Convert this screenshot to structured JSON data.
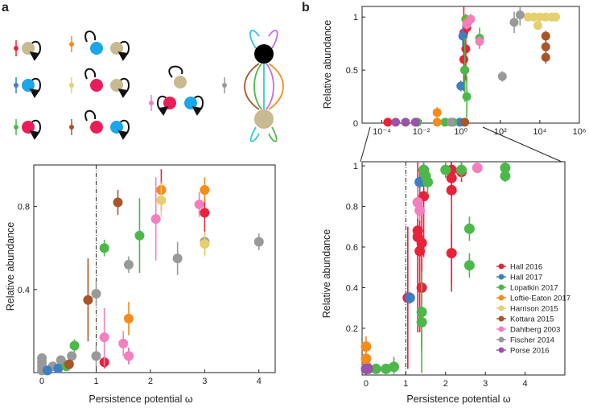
{
  "figure": {
    "panel_a_label": "a",
    "panel_b_label": "b",
    "omega_symbol": "ω"
  },
  "colors": {
    "Hall 2016": "#e8223a",
    "Hall 2017": "#3f7fc1",
    "Lopatkin 2017": "#4cb84a",
    "Loftie-Eaton 2017": "#f28c1c",
    "Harrison 2015": "#e6cf6e",
    "Kottara 2015": "#a65628",
    "Dahlberg 2003": "#f27fbf",
    "Fischer 2014": "#999999",
    "Porse 2016": "#9a53a8",
    "host_tan": "#c8b991",
    "host_blue": "#1aa6e8",
    "host_red": "#e81e5a",
    "cyan": "#34c6d8",
    "violet": "#c46ee0"
  },
  "chart_data": [
    {
      "id": "a-bottom",
      "type": "scatter",
      "xlabel": "Persistence potential ω",
      "ylabel": "Relative abundance",
      "xlim": [
        -0.15,
        4.3
      ],
      "ylim": [
        0,
        1.0
      ],
      "xticks": [
        "0",
        "1",
        "2",
        "3",
        "4"
      ],
      "yticks": [
        "0.4",
        "0.8"
      ],
      "reference_line_x": 1,
      "series": [
        {
          "name": "Fischer 2014",
          "points": [
            [
              0,
              0.07,
              0.02
            ],
            [
              0,
              0.05,
              0.02
            ],
            [
              0,
              0.03,
              0.02
            ],
            [
              0,
              0.01,
              0.01
            ],
            [
              0.2,
              0.03,
              0.02
            ],
            [
              0.35,
              0.06,
              0.02
            ],
            [
              0.55,
              0.08,
              0.02
            ],
            [
              1.0,
              0.38,
              0.06
            ],
            [
              1.0,
              0.08,
              0.05
            ],
            [
              1.6,
              0.52,
              0.04
            ],
            [
              2.5,
              0.55,
              0.08
            ],
            [
              3.0,
              0.63,
              0.06
            ],
            [
              4.0,
              0.63,
              0.04
            ]
          ]
        },
        {
          "name": "Hall 2016",
          "points": [
            [
              1.15,
              0.05,
              0.03
            ],
            [
              1.6,
              0.08,
              0.04
            ],
            [
              2.2,
              0.88,
              0.1
            ],
            [
              3.0,
              0.77,
              0.1
            ]
          ]
        },
        {
          "name": "Hall 2017",
          "points": [
            [
              0.1,
              0.01,
              0.01
            ],
            [
              0.3,
              0.02,
              0.01
            ]
          ]
        },
        {
          "name": "Lopatkin 2017",
          "points": [
            [
              0.6,
              0.13,
              0.03
            ],
            [
              1.15,
              0.6,
              0.04
            ],
            [
              1.8,
              0.66,
              0.18
            ],
            [
              0.45,
              0.03,
              0.02
            ]
          ]
        },
        {
          "name": "Loftie-Eaton 2017",
          "points": [
            [
              1.6,
              0.26,
              0.08
            ],
            [
              2.2,
              0.88,
              0.04
            ],
            [
              3.0,
              0.88,
              0.06
            ]
          ]
        },
        {
          "name": "Harrison 2015",
          "points": [
            [
              2.2,
              0.83,
              0.08
            ],
            [
              3.0,
              0.62,
              0.06
            ]
          ]
        },
        {
          "name": "Kottara 2015",
          "points": [
            [
              0.85,
              0.35,
              0.2
            ],
            [
              1.4,
              0.82,
              0.06
            ],
            [
              0.5,
              0.04,
              0.02
            ]
          ]
        },
        {
          "name": "Dahlberg 2003",
          "points": [
            [
              1.15,
              0.17,
              0.14
            ],
            [
              1.5,
              0.14,
              0.06
            ],
            [
              2.1,
              0.74,
              0.2
            ],
            [
              2.9,
              0.81,
              0.06
            ],
            [
              1.6,
              0.08,
              0.04
            ]
          ]
        }
      ]
    },
    {
      "id": "b-top",
      "type": "scatter",
      "xscale": "log",
      "ylabel": "Relative abundance",
      "xlim_log10": [
        -5,
        6
      ],
      "ylim": [
        0,
        1.1
      ],
      "xticks": [
        "10⁻⁴",
        "10⁻²",
        "10⁰",
        "10²",
        "10⁴",
        "10⁶"
      ],
      "yticks": [
        "0",
        "0.5",
        "1"
      ],
      "series": [
        {
          "name": "Hall 2016",
          "points": [
            [
              -3.7,
              0,
              0
            ],
            [
              0.15,
              0.85,
              0.25
            ],
            [
              0.15,
              0.6,
              0.3
            ],
            [
              0.2,
              0.5,
              0.2
            ],
            [
              0.25,
              0.7,
              0.3
            ],
            [
              0.3,
              0.9,
              0.1
            ]
          ]
        },
        {
          "name": "Hall 2017",
          "points": [
            [
              0.0,
              0.35,
              0.05
            ],
            [
              0.1,
              0.82,
              0.1
            ],
            [
              -0.05,
              0.0,
              0.0
            ]
          ]
        },
        {
          "name": "Lopatkin 2017",
          "points": [
            [
              -2.2,
              0,
              0
            ],
            [
              -0.8,
              0,
              0
            ],
            [
              -0.4,
              0,
              0
            ],
            [
              0.25,
              0.98,
              0.05
            ],
            [
              0.2,
              0.5,
              0.3
            ],
            [
              0.3,
              0.25,
              0.2
            ],
            [
              0.95,
              0.8,
              0.1
            ],
            [
              0.35,
              0.95,
              0.05
            ]
          ]
        },
        {
          "name": "Loftie-Eaton 2017",
          "points": [
            [
              -1.2,
              0.1,
              0.05
            ],
            [
              -1.2,
              0.0,
              0.0
            ],
            [
              0.3,
              0.95,
              0.05
            ]
          ]
        },
        {
          "name": "Harrison 2015",
          "points": [
            [
              3.4,
              1,
              0
            ],
            [
              3.7,
              1,
              0
            ],
            [
              4.0,
              1,
              0
            ],
            [
              4.3,
              1,
              0
            ],
            [
              4.6,
              1,
              0
            ],
            [
              4.8,
              1,
              0
            ],
            [
              3.9,
              0.92,
              0.03
            ]
          ]
        },
        {
          "name": "Kottara 2015",
          "points": [
            [
              4.3,
              0.82,
              0.05
            ],
            [
              4.3,
              0.72,
              0.06
            ],
            [
              4.3,
              0.62,
              0.06
            ],
            [
              0.2,
              0.0,
              0.0
            ]
          ]
        },
        {
          "name": "Dahlberg 2003",
          "points": [
            [
              0.5,
              0.98,
              0.05
            ],
            [
              0.3,
              0.93,
              0.05
            ],
            [
              0.95,
              0.77,
              0.05
            ]
          ]
        },
        {
          "name": "Fischer 2014",
          "points": [
            [
              -0.5,
              0,
              0
            ],
            [
              2.1,
              0.44,
              0.05
            ],
            [
              2.7,
              0.95,
              0.1
            ],
            [
              3.0,
              1.02,
              0.1
            ]
          ]
        },
        {
          "name": "Porse 2016",
          "points": [
            [
              -3.3,
              0,
              0
            ],
            [
              -2.8,
              0,
              0
            ],
            [
              -2.3,
              0,
              0
            ]
          ]
        }
      ]
    },
    {
      "id": "b-bottom",
      "type": "scatter",
      "xlabel": "Persistence potential ω",
      "ylabel": "Relative abundance",
      "xlim": [
        -0.1,
        5.0
      ],
      "ylim": [
        -0.03,
        1.02
      ],
      "xticks": [
        "0",
        "1",
        "2",
        "3",
        "4"
      ],
      "yticks": [
        "0.2",
        "0.4",
        "0.6",
        "0.8",
        "1"
      ],
      "reference_line_x": 1,
      "legend": [
        "Hall 2016",
        "Hall 2017",
        "Lopatkin 2017",
        "Loftie-Eaton 2017",
        "Harrison 2015",
        "Kottara 2015",
        "Dahlberg 2003",
        "Fischer 2014",
        "Porse 2016"
      ],
      "series": [
        {
          "name": "Hall 2016",
          "points": [
            [
              1.05,
              0.35,
              0.35
            ],
            [
              1.3,
              0.65,
              0.25
            ],
            [
              1.35,
              0.58,
              0.4
            ],
            [
              1.4,
              0.62,
              0.2
            ],
            [
              1.3,
              0.68,
              0.5
            ],
            [
              1.4,
              0.4,
              0.3
            ],
            [
              1.45,
              0.85,
              0.3
            ],
            [
              2.15,
              0.98,
              0.05
            ],
            [
              2.15,
              0.88,
              0.5
            ],
            [
              2.15,
              0.57,
              0.15
            ],
            [
              2.4,
              0.97,
              0.05
            ],
            [
              2.15,
              0.94,
              0.1
            ]
          ]
        },
        {
          "name": "Hall 2017",
          "points": [
            [
              1.1,
              0.35,
              0.03
            ],
            [
              1.35,
              0.92,
              0.05
            ],
            [
              1.45,
              0.98,
              0.05
            ]
          ]
        },
        {
          "name": "Lopatkin 2017",
          "points": [
            [
              0.25,
              0.0,
              0.02
            ],
            [
              0.5,
              0.0,
              0.02
            ],
            [
              0.7,
              0.01,
              0.05
            ],
            [
              1.4,
              0.28,
              0.2
            ],
            [
              1.4,
              0.23,
              0.25
            ],
            [
              1.45,
              0.98,
              0.05
            ],
            [
              1.5,
              0.95,
              0.05
            ],
            [
              1.55,
              0.92,
              0.06
            ],
            [
              2.0,
              0.98,
              0.04
            ],
            [
              2.6,
              0.69,
              0.06
            ],
            [
              2.6,
              0.51,
              0.06
            ],
            [
              3.5,
              0.99,
              0.03
            ],
            [
              3.5,
              0.95,
              0.03
            ],
            [
              2.4,
              0.98,
              0.04
            ]
          ]
        },
        {
          "name": "Loftie-Eaton 2017",
          "points": [
            [
              0.0,
              0.11,
              0.05
            ],
            [
              0.0,
              0.05,
              0.03
            ],
            [
              0.02,
              0.01,
              0.01
            ]
          ]
        },
        {
          "name": "Dahlberg 2003",
          "points": [
            [
              1.3,
              0.82,
              0.08
            ],
            [
              1.35,
              0.78,
              0.05
            ],
            [
              2.8,
              0.99,
              0.02
            ]
          ]
        },
        {
          "name": "Fischer 2014",
          "points": [
            [
              0.0,
              0.0,
              0.0
            ]
          ]
        },
        {
          "name": "Porse 2016",
          "points": [
            [
              0.0,
              0.0,
              0.0
            ],
            [
              0.05,
              0.0,
              0.0
            ]
          ]
        }
      ]
    }
  ]
}
